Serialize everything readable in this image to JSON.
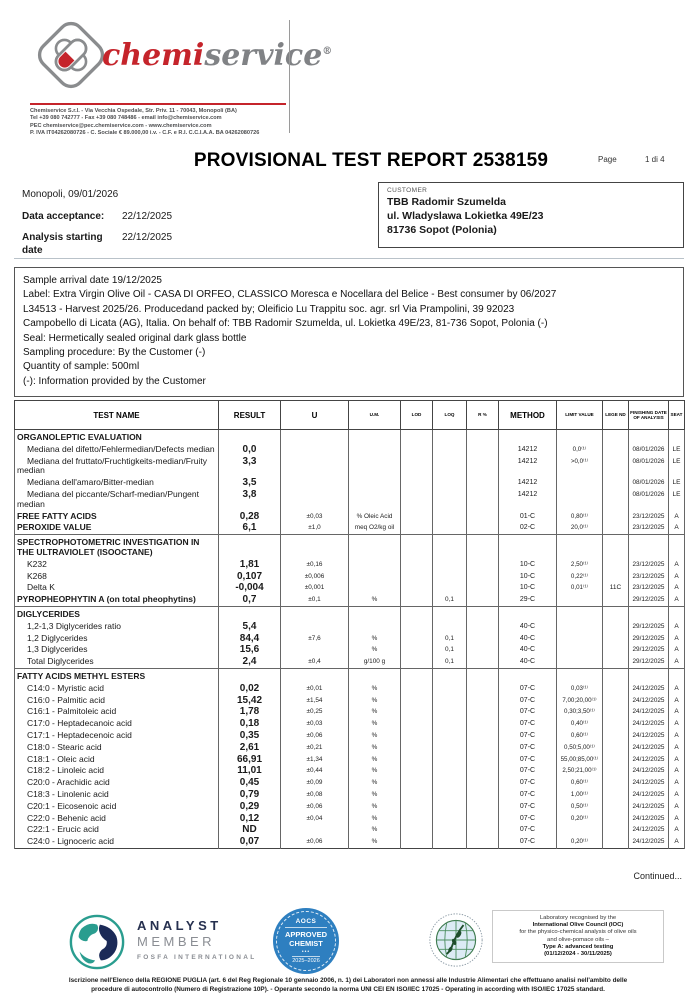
{
  "header": {
    "brand": {
      "chemi": "chemi",
      "service": "service",
      "reg": "®"
    },
    "contact_lines": [
      "Chemiservice S.r.l.  -  Via Vecchia Ospedale, Str. Priv. 11  -  70043, Monopoli (BA)",
      "Tel +39 080 742777  -  Fax +39 080 748486  -  email info@chemiservice.com",
      "PEC chemiservice@pec.chemiservice.com  -  www.chemiservice.com",
      "P. IVA IT04262080726  -  C. Sociale € 89.000,00 i.v.  -  C.F. e R.I. C.C.I.A.A. BA 04262080726"
    ]
  },
  "title": {
    "text": "PROVISIONAL TEST REPORT 2538159",
    "page_label": "Page",
    "page_value": "1 di 4"
  },
  "meta": {
    "place_date": "Monopoli, 09/01/2026",
    "acceptance_label": "Data acceptance:",
    "acceptance_value": "22/12/2025",
    "analysis_label": "Analysis starting date",
    "analysis_value": "22/12/2025"
  },
  "customer": {
    "label": "CUSTOMER",
    "lines": [
      "TBB Radomir Szumelda",
      "ul. Wladyslawa Lokietka 49E/23",
      "81736  Sopot (Polonia)"
    ]
  },
  "sample": {
    "lines": [
      "Sample arrival date 19/12/2025",
      "Label: Extra Virgin Olive Oil - CASA DI ORFEO, CLASSICO Moresca e Nocellara del Belice - Best consumer by 06/2027",
      "L34513 - Harvest 2025/26. Producedand packed by; Oleificio Lu Trappitu soc. agr. srl Via Prampolini, 39 92023",
      "Campobello di Licata (AG), Italia. On behalf of: TBB Radomir Szumelda, ul. Lokietka 49E/23, 81-736 Sopot, Polonia  (-)",
      "Seal: Hermetically sealed original dark glass bottle",
      "Sampling procedure: By the Customer (-)",
      "Quantity of sample: 500ml",
      "(-): Information provided by the Customer"
    ]
  },
  "table": {
    "headers": [
      "TEST NAME",
      "RESULT",
      "U",
      "U.M.",
      "LOD",
      "LOQ",
      "R %",
      "METHOD",
      "LIMIT VALUE",
      "LEGE ND",
      "FINISHING DATE OF ANALYSIS",
      "SEAT"
    ],
    "rows": [
      {
        "type": "section",
        "name": "ORGANOLEPTIC EVALUATION"
      },
      {
        "type": "item",
        "name": "Mediana del difetto/Fehlermedian/Defects median",
        "result": "0,0",
        "method": "14212",
        "limit": "0,0⁽¹⁾",
        "date": "08/01/2026",
        "seat": "LE"
      },
      {
        "type": "item",
        "name": "Mediana del fruttato/Fruchtigkeits-median/Fruity median",
        "result": "3,3",
        "method": "14212",
        "limit": ">0,0⁽¹⁾",
        "date": "08/01/2026",
        "seat": "LE"
      },
      {
        "type": "item",
        "name": "Mediana dell'amaro/Bitter-median",
        "result": "3,5",
        "method": "14212",
        "date": "08/01/2026",
        "seat": "LE"
      },
      {
        "type": "item",
        "name": "Mediana del piccante/Scharf-median/Pungent median",
        "result": "3,8",
        "method": "14212",
        "date": "08/01/2026",
        "seat": "LE"
      },
      {
        "type": "main",
        "name": "FREE FATTY ACIDS",
        "result": "0,28",
        "u": "±0,03",
        "um": "% Oleic Acid",
        "method": "01-C",
        "limit": "0,80⁽¹⁾",
        "date": "23/12/2025",
        "seat": "A"
      },
      {
        "type": "main",
        "name": "PEROXIDE VALUE",
        "result": "6,1",
        "u": "±1,0",
        "um": "meq O2/kg oil",
        "method": "02-C",
        "limit": "20,0⁽¹⁾",
        "date": "23/12/2025",
        "seat": "A"
      },
      {
        "type": "section",
        "rule": true,
        "name": "SPECTROPHOTOMETRIC INVESTIGATION IN THE ULTRAVIOLET (ISOOCTANE)"
      },
      {
        "type": "item",
        "name": "K232",
        "result": "1,81",
        "u": "±0,16",
        "method": "10-C",
        "limit": "2,50⁽¹⁾",
        "date": "23/12/2025",
        "seat": "A"
      },
      {
        "type": "item",
        "name": "K268",
        "result": "0,107",
        "u": "±0,006",
        "method": "10-C",
        "limit": "0,22⁽¹⁾",
        "date": "23/12/2025",
        "seat": "A"
      },
      {
        "type": "item",
        "name": "Delta K",
        "result": "-0,004",
        "u": "±0,001",
        "method": "10-C",
        "limit": "0,01⁽¹⁾",
        "legend": "11C",
        "date": "23/12/2025",
        "seat": "A"
      },
      {
        "type": "main",
        "name": "PYROPHEOPHYTIN A (on total pheophytins)",
        "result": "0,7",
        "u": "±0,1",
        "um": "%",
        "loq": "0,1",
        "method": "29-C",
        "date": "29/12/2025",
        "seat": "A"
      },
      {
        "type": "section",
        "rule": true,
        "name": "DIGLYCERIDES"
      },
      {
        "type": "item",
        "name": "1,2-1,3 Diglycerides ratio",
        "result": "5,4",
        "method": "40-C",
        "date": "29/12/2025",
        "seat": "A"
      },
      {
        "type": "item",
        "name": "1,2 Diglycerides",
        "result": "84,4",
        "u": "±7,6",
        "um": "%",
        "loq": "0,1",
        "method": "40-C",
        "date": "29/12/2025",
        "seat": "A"
      },
      {
        "type": "item",
        "name": "1,3 Diglycerides",
        "result": "15,6",
        "um": "%",
        "loq": "0,1",
        "method": "40-C",
        "date": "29/12/2025",
        "seat": "A"
      },
      {
        "type": "item",
        "name": "Total Diglycerides",
        "result": "2,4",
        "u": "±0,4",
        "um": "g/100 g",
        "loq": "0,1",
        "method": "40-C",
        "date": "29/12/2025",
        "seat": "A"
      },
      {
        "type": "section",
        "rule": true,
        "name": "FATTY ACIDS METHYL ESTERS"
      },
      {
        "type": "item",
        "name": "C14:0 - Myristic acid",
        "result": "0,02",
        "u": "±0,01",
        "um": "%",
        "method": "07-C",
        "limit": "0,03⁽¹⁾",
        "date": "24/12/2025",
        "seat": "A"
      },
      {
        "type": "item",
        "name": "C16:0 - Palmitic acid",
        "result": "15,42",
        "u": "±1,54",
        "um": "%",
        "method": "07-C",
        "limit": "7,00;20,00⁽¹⁾",
        "date": "24/12/2025",
        "seat": "A"
      },
      {
        "type": "item",
        "name": "C16:1 - Palmitoleic acid",
        "result": "1,78",
        "u": "±0,25",
        "um": "%",
        "method": "07-C",
        "limit": "0,30;3,50⁽¹⁾",
        "date": "24/12/2025",
        "seat": "A"
      },
      {
        "type": "item",
        "name": "C17:0 - Heptadecanoic acid",
        "result": "0,18",
        "u": "±0,03",
        "um": "%",
        "method": "07-C",
        "limit": "0,40⁽¹⁾",
        "date": "24/12/2025",
        "seat": "A"
      },
      {
        "type": "item",
        "name": "C17:1 - Heptadecenoic acid",
        "result": "0,35",
        "u": "±0,06",
        "um": "%",
        "method": "07-C",
        "limit": "0,60⁽¹⁾",
        "date": "24/12/2025",
        "seat": "A"
      },
      {
        "type": "item",
        "name": "C18:0 - Stearic acid",
        "result": "2,61",
        "u": "±0,21",
        "um": "%",
        "method": "07-C",
        "limit": "0,50;5,00⁽¹⁾",
        "date": "24/12/2025",
        "seat": "A"
      },
      {
        "type": "item",
        "name": "C18:1 - Oleic acid",
        "result": "66,91",
        "u": "±1,34",
        "um": "%",
        "method": "07-C",
        "limit": "55,00;85,00⁽¹⁾",
        "date": "24/12/2025",
        "seat": "A"
      },
      {
        "type": "item",
        "name": "C18:2 - Linoleic acid",
        "result": "11,01",
        "u": "±0,44",
        "um": "%",
        "method": "07-C",
        "limit": "2,50;21,00⁽¹⁾",
        "date": "24/12/2025",
        "seat": "A"
      },
      {
        "type": "item",
        "name": "C20:0 - Arachidic acid",
        "result": "0,45",
        "u": "±0,09",
        "um": "%",
        "method": "07-C",
        "limit": "0,60⁽¹⁾",
        "date": "24/12/2025",
        "seat": "A"
      },
      {
        "type": "item",
        "name": "C18:3 - Linolenic acid",
        "result": "0,79",
        "u": "±0,08",
        "um": "%",
        "method": "07-C",
        "limit": "1,00⁽¹⁾",
        "date": "24/12/2025",
        "seat": "A"
      },
      {
        "type": "item",
        "name": "C20:1 - Eicosenoic acid",
        "result": "0,29",
        "u": "±0,06",
        "um": "%",
        "method": "07-C",
        "limit": "0,50⁽¹⁾",
        "date": "24/12/2025",
        "seat": "A"
      },
      {
        "type": "item",
        "name": "C22:0 - Behenic acid",
        "result": "0,12",
        "u": "±0,04",
        "um": "%",
        "method": "07-C",
        "limit": "0,20⁽¹⁾",
        "date": "24/12/2025",
        "seat": "A"
      },
      {
        "type": "item",
        "name": "C22:1 - Erucic acid",
        "result": "ND",
        "um": "%",
        "method": "07-C",
        "date": "24/12/2025",
        "seat": "A"
      },
      {
        "type": "item",
        "name": "C24:0 - Lignoceric acid",
        "result": "0,07",
        "u": "±0,06",
        "um": "%",
        "method": "07-C",
        "limit": "0,20⁽¹⁾",
        "date": "24/12/2025",
        "seat": "A"
      }
    ]
  },
  "continued": "Continued...",
  "footer": {
    "fosfa": {
      "line1": "ANALYST",
      "line2": "MEMBER",
      "line3": "FOSFA INTERNATIONAL"
    },
    "aocs": {
      "top": "AOCS",
      "approved": "APPROVED",
      "chemist": "CHEMIST",
      "dots": "•••",
      "years": "2025–2026"
    },
    "ioc_lines": [
      {
        "text": "Laboratory recognised by the",
        "bold": false
      },
      {
        "text": "International Olive Council (IOC)",
        "bold": true
      },
      {
        "text": "for the physico-chemical analysis of olive oils",
        "bold": false
      },
      {
        "text": "and olive-pomace oils –",
        "bold": false
      },
      {
        "text": "Type A: advanced testing",
        "bold": true
      },
      {
        "text": "(01/12/2024 - 30/11/2025)",
        "bold": true
      }
    ]
  },
  "legal_lines": [
    "Iscrizione nell'Elenco della REGIONE PUGLIA (art. 6 del Reg Regionale 10 gennaio 2006, n. 1) dei Laboratori non annessi alle Industrie Alimentari che effettuano analisi nell'ambito delle",
    "procedure di autocontrollo (Numero di Registrazione 10P). - Operante secondo la norma UNI CEI EN ISO/IEC 17025 - Operating in according with ISO/IEC 17025 standard."
  ],
  "colors": {
    "brand_red": "#c5242b",
    "brand_gray": "#808285",
    "aocs_blue": "#2e7fc0"
  }
}
